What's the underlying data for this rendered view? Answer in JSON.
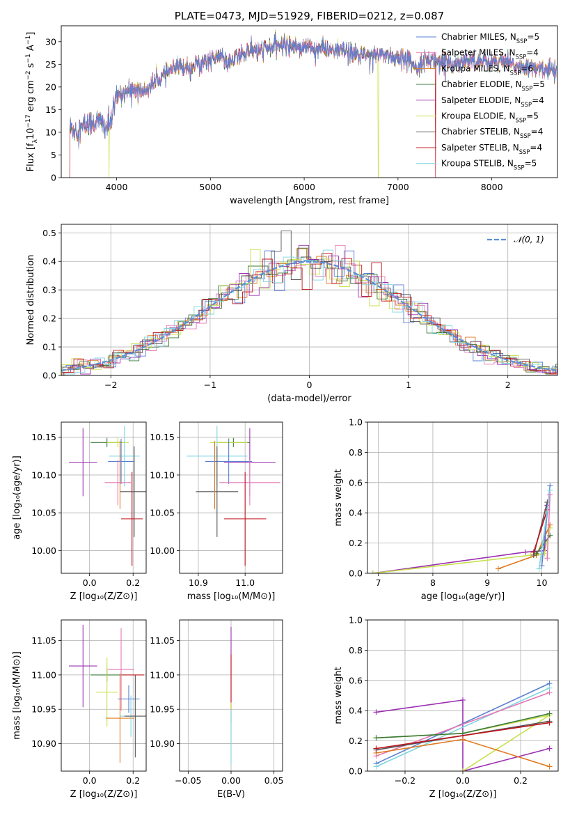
{
  "colors": {
    "chabrier_miles": "#5b7fd4",
    "salpeter_miles": "#e678b4",
    "kroupa_miles": "#e07a1e",
    "chabrier_elodie": "#3a7a3a",
    "salpeter_elodie": "#9b30b0",
    "kroupa_elodie": "#c8e04a",
    "chabrier_stelib": "#555555",
    "salpeter_stelib": "#c0141c",
    "kroupa_stelib": "#7fd6e0",
    "normal_fit": "#5b8fd4",
    "grid": "#b0b0b0"
  },
  "chart_data": [
    {
      "id": "spectrum",
      "type": "line",
      "title": "PLATE=0473, MJD=51929, FIBERID=0212, z=0.087",
      "xlabel": "wavelength [Angstrom, rest frame]",
      "ylabel": "Flux [fλ10⁻¹⁷ erg cm⁻² s⁻¹ A⁻¹]",
      "xlim": [
        3410,
        8700
      ],
      "ylim": [
        0,
        33.5
      ],
      "xticks": [
        4000,
        5000,
        6000,
        7000,
        8000
      ],
      "yticks": [
        0,
        5,
        10,
        15,
        20,
        25,
        30
      ],
      "grid": false,
      "legend_position": "top-right",
      "series": [
        {
          "name": "Chabrier MILES, N_SSP=5",
          "legend": "Chabrier MILES, N",
          "nssp": "=5"
        },
        {
          "name": "Salpeter MILES, N_SSP=4",
          "legend": "Salpeter MILES, N",
          "nssp": "=4"
        },
        {
          "name": "Kroupa MILES, N_SSP=6",
          "legend": "Kroupa MILES, N",
          "nssp": "=6"
        },
        {
          "name": "Chabrier ELODIE, N_SSP=5",
          "legend": "Chabrier ELODIE, N",
          "nssp": "=5"
        },
        {
          "name": "Salpeter ELODIE, N_SSP=4",
          "legend": "Salpeter ELODIE, N",
          "nssp": "=4"
        },
        {
          "name": "Kroupa ELODIE, N_SSP=5",
          "legend": "Kroupa ELODIE, N",
          "nssp": "=5"
        },
        {
          "name": "Chabrier STELIB, N_SSP=4",
          "legend": "Chabrier STELIB, N",
          "nssp": "=4"
        },
        {
          "name": "Salpeter STELIB, N_SSP=4",
          "legend": "Salpeter STELIB, N",
          "nssp": "=4"
        },
        {
          "name": "Kroupa STELIB, N_SSP=5",
          "legend": "Kroupa STELIB, N",
          "nssp": "=5"
        }
      ],
      "continuum": [
        [
          3500,
          11
        ],
        [
          3600,
          10.5
        ],
        [
          3700,
          12
        ],
        [
          3800,
          12.5
        ],
        [
          3900,
          11
        ],
        [
          3950,
          13
        ],
        [
          4000,
          18
        ],
        [
          4100,
          19
        ],
        [
          4200,
          19.5
        ],
        [
          4300,
          19
        ],
        [
          4400,
          21
        ],
        [
          4500,
          22.5
        ],
        [
          4600,
          24
        ],
        [
          4700,
          24.5
        ],
        [
          4800,
          24.5
        ],
        [
          4900,
          25.5
        ],
        [
          5000,
          26
        ],
        [
          5100,
          27
        ],
        [
          5200,
          25
        ],
        [
          5300,
          27
        ],
        [
          5400,
          28
        ],
        [
          5500,
          28
        ],
        [
          5600,
          28.5
        ],
        [
          5700,
          29
        ],
        [
          5800,
          29.5
        ],
        [
          5900,
          29
        ],
        [
          6000,
          29
        ],
        [
          6100,
          28.5
        ],
        [
          6200,
          28.5
        ],
        [
          6300,
          28
        ],
        [
          6400,
          28
        ],
        [
          6500,
          27.5
        ],
        [
          6600,
          27
        ],
        [
          6700,
          27
        ],
        [
          6800,
          27.5
        ],
        [
          6900,
          27
        ],
        [
          7000,
          26.5
        ],
        [
          7100,
          26
        ],
        [
          7200,
          24.5
        ],
        [
          7300,
          26
        ],
        [
          7400,
          26
        ],
        [
          7500,
          25.5
        ],
        [
          7600,
          25
        ],
        [
          7700,
          26
        ],
        [
          7800,
          26
        ],
        [
          7900,
          25.5
        ],
        [
          8000,
          25.5
        ],
        [
          8100,
          25.5
        ],
        [
          8200,
          25
        ],
        [
          8300,
          24.5
        ],
        [
          8400,
          24
        ],
        [
          8500,
          24
        ],
        [
          8600,
          24
        ],
        [
          8690,
          23.5
        ]
      ],
      "drops": [
        {
          "x": 3500,
          "series": "Salpeter STELIB, N_SSP=4"
        },
        {
          "x": 3920,
          "series": "Kroupa ELODIE, N_SSP=5"
        },
        {
          "x": 6790,
          "series": "Kroupa ELODIE, N_SSP=5"
        },
        {
          "x": 7400,
          "series": "Salpeter STELIB, N_SSP=4"
        }
      ]
    },
    {
      "id": "residuals",
      "type": "histogram",
      "xlabel": "(data-model)/error",
      "ylabel": "Normed distribution",
      "xlim": [
        -2.5,
        2.5
      ],
      "ylim": [
        0,
        0.53
      ],
      "xticks": [
        -2,
        -1,
        0,
        1,
        2
      ],
      "yticks": [
        0.0,
        0.1,
        0.2,
        0.3,
        0.4,
        0.5
      ],
      "grid": true,
      "legend_position": "top-right",
      "legend": "𝒩(0, 1)",
      "bin_width": 0.1,
      "peak_bin": {
        "series": "Chabrier STELIB, N_SSP=4",
        "x": -0.25,
        "y": 0.507
      }
    },
    {
      "id": "age_vs_Z",
      "type": "errorbar",
      "xlabel": "Z [log₁₀(Z/Z⊙)]",
      "ylabel": "age  [log₁₀(age/yr)]",
      "xlim": [
        -0.13,
        0.26
      ],
      "ylim": [
        9.97,
        10.17
      ],
      "xticks": [
        0.0,
        0.2
      ],
      "yticks": [
        10.0,
        10.05,
        10.1,
        10.15
      ],
      "grid": true,
      "points": [
        {
          "series": "Salpeter ELODIE, N_SSP=4",
          "x": -0.03,
          "xerr": 0.065,
          "y": 10.117,
          "yerr": 0.045
        },
        {
          "series": "Chabrier ELODIE, N_SSP=5",
          "x": 0.08,
          "xerr": 0.075,
          "y": 10.143,
          "yerr": 0.006
        },
        {
          "series": "Kroupa ELODIE, N_SSP=5",
          "x": 0.13,
          "xerr": 0.05,
          "y": 10.143,
          "yerr": 0.006
        },
        {
          "series": "Kroupa STELIB, N_SSP=5",
          "x": 0.16,
          "xerr": 0.07,
          "y": 10.125,
          "yerr": 0.04
        },
        {
          "series": "Chabrier MILES, N_SSP=5",
          "x": 0.145,
          "xerr": 0.06,
          "y": 10.118,
          "yerr": 0.03
        },
        {
          "series": "Salpeter MILES, N_SSP=4",
          "x": 0.13,
          "xerr": 0.06,
          "y": 10.09,
          "yerr": 0.03
        },
        {
          "series": "Chabrier STELIB, N_SSP=4",
          "x": 0.205,
          "xerr": 0.065,
          "y": 10.078,
          "yerr": 0.06
        },
        {
          "series": "Salpeter STELIB, N_SSP=4",
          "x": 0.195,
          "xerr": 0.05,
          "y": 10.042,
          "yerr": 0.062
        },
        {
          "series": "Kroupa MILES, N_SSP=6",
          "x": 0.14,
          "xerr": 0.0,
          "y": 10.1,
          "yerr": 0.045
        }
      ]
    },
    {
      "id": "age_vs_mass",
      "type": "errorbar",
      "xlabel": "mass [log₁₀(M/M⊙)]",
      "ylabel": "",
      "xlim": [
        10.86,
        11.08
      ],
      "ylim": [
        9.97,
        10.17
      ],
      "xticks": [
        10.9,
        11.0
      ],
      "yticks": [
        10.0,
        10.05,
        10.1,
        10.15
      ],
      "grid": true,
      "points": [
        {
          "series": "Salpeter ELODIE, N_SSP=4",
          "x": 11.01,
          "xerr": 0.055,
          "y": 10.117,
          "yerr": 0.045
        },
        {
          "series": "Chabrier ELODIE, N_SSP=5",
          "x": 10.975,
          "xerr": 0.035,
          "y": 10.143,
          "yerr": 0.006
        },
        {
          "series": "Kroupa ELODIE, N_SSP=5",
          "x": 10.965,
          "xerr": 0.04,
          "y": 10.143,
          "yerr": 0.006
        },
        {
          "series": "Kroupa STELIB, N_SSP=5",
          "x": 10.94,
          "xerr": 0.065,
          "y": 10.125,
          "yerr": 0.04
        },
        {
          "series": "Chabrier MILES, N_SSP=5",
          "x": 10.965,
          "xerr": 0.05,
          "y": 10.118,
          "yerr": 0.03
        },
        {
          "series": "Salpeter MILES, N_SSP=4",
          "x": 11.01,
          "xerr": 0.065,
          "y": 10.09,
          "yerr": 0.03
        },
        {
          "series": "Chabrier STELIB, N_SSP=4",
          "x": 10.94,
          "xerr": 0.045,
          "y": 10.078,
          "yerr": 0.06
        },
        {
          "series": "Salpeter STELIB, N_SSP=4",
          "x": 11.0,
          "xerr": 0.045,
          "y": 10.042,
          "yerr": 0.062
        },
        {
          "series": "Kroupa MILES, N_SSP=6",
          "x": 10.935,
          "xerr": 0.0,
          "y": 10.1,
          "yerr": 0.045
        }
      ]
    },
    {
      "id": "weight_vs_age",
      "type": "line",
      "xlabel": "age  [log₁₀(age/yr)]",
      "ylabel": "mass weight",
      "xlim": [
        6.8,
        10.3
      ],
      "ylim": [
        0,
        1.0
      ],
      "xticks": [
        7,
        8,
        9,
        10
      ],
      "yticks": [
        0.0,
        0.2,
        0.4,
        0.6,
        0.8,
        1.0
      ],
      "grid": true,
      "series": [
        {
          "name": "Salpeter ELODIE, N_SSP=4",
          "points": [
            [
              6.9,
              0.0
            ],
            [
              9.7,
              0.14
            ],
            [
              10.05,
              0.15
            ],
            [
              10.1,
              0.45
            ]
          ]
        },
        {
          "name": "Kroupa ELODIE, N_SSP=5",
          "points": [
            [
              6.9,
              0.0
            ],
            [
              9.8,
              0.12
            ],
            [
              10.05,
              0.13
            ],
            [
              10.15,
              0.3
            ]
          ]
        },
        {
          "name": "Kroupa MILES, N_SSP=6",
          "points": [
            [
              9.2,
              0.03
            ],
            [
              9.9,
              0.12
            ],
            [
              10.15,
              0.32
            ]
          ]
        },
        {
          "name": "Chabrier STELIB, N_SSP=4",
          "points": [
            [
              9.85,
              0.12
            ],
            [
              10.1,
              0.47
            ]
          ]
        },
        {
          "name": "Salpeter STELIB, N_SSP=4",
          "points": [
            [
              9.85,
              0.14
            ],
            [
              10.1,
              0.42
            ]
          ]
        },
        {
          "name": "Chabrier ELODIE, N_SSP=5",
          "points": [
            [
              9.9,
              0.13
            ],
            [
              10.15,
              0.25
            ]
          ]
        },
        {
          "name": "Chabrier MILES, N_SSP=5",
          "points": [
            [
              10.0,
              0.05
            ],
            [
              10.15,
              0.58
            ]
          ]
        },
        {
          "name": "Kroupa STELIB, N_SSP=5",
          "points": [
            [
              9.95,
              0.03
            ],
            [
              10.15,
              0.55
            ]
          ]
        },
        {
          "name": "Salpeter MILES, N_SSP=4",
          "points": [
            [
              10.1,
              0.1
            ],
            [
              10.15,
              0.52
            ]
          ]
        }
      ]
    },
    {
      "id": "mass_vs_Z",
      "type": "errorbar",
      "xlabel": "Z [log₁₀(Z/Z⊙)]",
      "ylabel": "mass [log₁₀(M/M⊙)]",
      "xlim": [
        -0.13,
        0.26
      ],
      "ylim": [
        10.86,
        11.08
      ],
      "xticks": [
        0.0,
        0.2
      ],
      "yticks": [
        10.9,
        10.95,
        11.0,
        11.05
      ],
      "grid": true,
      "points": [
        {
          "series": "Salpeter ELODIE, N_SSP=4",
          "x": -0.03,
          "xerr": 0.065,
          "y": 11.013,
          "yerr": 0.06
        },
        {
          "series": "Chabrier ELODIE, N_SSP=5",
          "x": 0.08,
          "xerr": 0.075,
          "y": 11.0,
          "yerr": 0.01
        },
        {
          "series": "Kroupa ELODIE, N_SSP=5",
          "x": 0.08,
          "xerr": 0.05,
          "y": 10.975,
          "yerr": 0.05
        },
        {
          "series": "Salpeter MILES, N_SSP=4",
          "x": 0.145,
          "xerr": 0.06,
          "y": 11.008,
          "yerr": 0.06
        },
        {
          "series": "Salpeter STELIB, N_SSP=4",
          "x": 0.2,
          "xerr": 0.05,
          "y": 11.0,
          "yerr": 0.0
        },
        {
          "series": "Chabrier MILES, N_SSP=5",
          "x": 0.18,
          "xerr": 0.05,
          "y": 10.965,
          "yerr": 0.02
        },
        {
          "series": "Kroupa MILES, N_SSP=6",
          "x": 0.14,
          "xerr": 0.065,
          "y": 10.937,
          "yerr": 0.065
        },
        {
          "series": "Kroupa STELIB, N_SSP=5",
          "x": 0.19,
          "xerr": 0.05,
          "y": 10.94,
          "yerr": 0.03
        },
        {
          "series": "Chabrier STELIB, N_SSP=4",
          "x": 0.21,
          "xerr": 0.05,
          "y": 10.94,
          "yerr": 0.06
        }
      ]
    },
    {
      "id": "mass_vs_EBV",
      "type": "errorbar",
      "xlabel": "E(B-V)",
      "ylabel": "",
      "xlim": [
        -0.06,
        0.06
      ],
      "ylim": [
        10.86,
        11.08
      ],
      "xticks": [
        -0.05,
        0.0,
        0.05
      ],
      "yticks": [
        10.9,
        10.95,
        11.0,
        11.05
      ],
      "grid": true,
      "points": [
        {
          "series": "Salpeter ELODIE, N_SSP=4",
          "x": 0.0,
          "xerr": 0.0,
          "y": 11.0,
          "yerr": 0.07
        },
        {
          "series": "Salpeter STELIB, N_SSP=4",
          "x": 0.0,
          "xerr": 0.0,
          "y": 10.99,
          "yerr": 0.04
        },
        {
          "series": "Kroupa ELODIE, N_SSP=5",
          "x": 0.0,
          "xerr": 0.0,
          "y": 10.93,
          "yerr": 0.03
        },
        {
          "series": "Kroupa STELIB, N_SSP=5",
          "x": 0.0,
          "xerr": 0.0,
          "y": 10.91,
          "yerr": 0.04
        }
      ]
    },
    {
      "id": "weight_vs_Z",
      "type": "line",
      "xlabel": "Z [log₁₀(Z/Z⊙)]",
      "ylabel": "mass weight",
      "xlim": [
        -0.33,
        0.33
      ],
      "ylim": [
        0,
        1.0
      ],
      "xticks": [
        -0.2,
        0.0,
        0.2
      ],
      "yticks": [
        0.0,
        0.2,
        0.4,
        0.6,
        0.8,
        1.0
      ],
      "grid": true,
      "series": [
        {
          "name": "Salpeter ELODIE, N_SSP=4",
          "points": [
            [
              -0.3,
              0.39
            ],
            [
              0.0,
              0.47
            ],
            [
              0.0,
              0.0
            ],
            [
              0.3,
              0.15
            ]
          ]
        },
        {
          "name": "Chabrier MILES, N_SSP=5",
          "points": [
            [
              -0.3,
              0.05
            ],
            [
              0.3,
              0.58
            ]
          ]
        },
        {
          "name": "Kroupa STELIB, N_SSP=5",
          "points": [
            [
              -0.3,
              0.03
            ],
            [
              0.3,
              0.55
            ]
          ]
        },
        {
          "name": "Salpeter MILES, N_SSP=4",
          "points": [
            [
              -0.3,
              0.1
            ],
            [
              0.3,
              0.52
            ]
          ]
        },
        {
          "name": "Kroupa ELODIE, N_SSP=5",
          "points": [
            [
              -0.3,
              0.22
            ],
            [
              0.0,
              0.25
            ],
            [
              0.3,
              0.37
            ],
            [
              0.0,
              0.0
            ]
          ]
        },
        {
          "name": "Chabrier ELODIE, N_SSP=5",
          "points": [
            [
              -0.3,
              0.22
            ],
            [
              0.0,
              0.25
            ],
            [
              0.3,
              0.38
            ]
          ]
        },
        {
          "name": "Kroupa MILES, N_SSP=6",
          "points": [
            [
              -0.3,
              0.12
            ],
            [
              0.0,
              0.21
            ],
            [
              0.3,
              0.03
            ]
          ]
        },
        {
          "name": "Chabrier STELIB, N_SSP=4",
          "points": [
            [
              -0.3,
              0.14
            ],
            [
              0.3,
              0.33
            ]
          ]
        },
        {
          "name": "Salpeter STELIB, N_SSP=4",
          "points": [
            [
              -0.3,
              0.15
            ],
            [
              0.3,
              0.32
            ]
          ]
        }
      ]
    }
  ]
}
